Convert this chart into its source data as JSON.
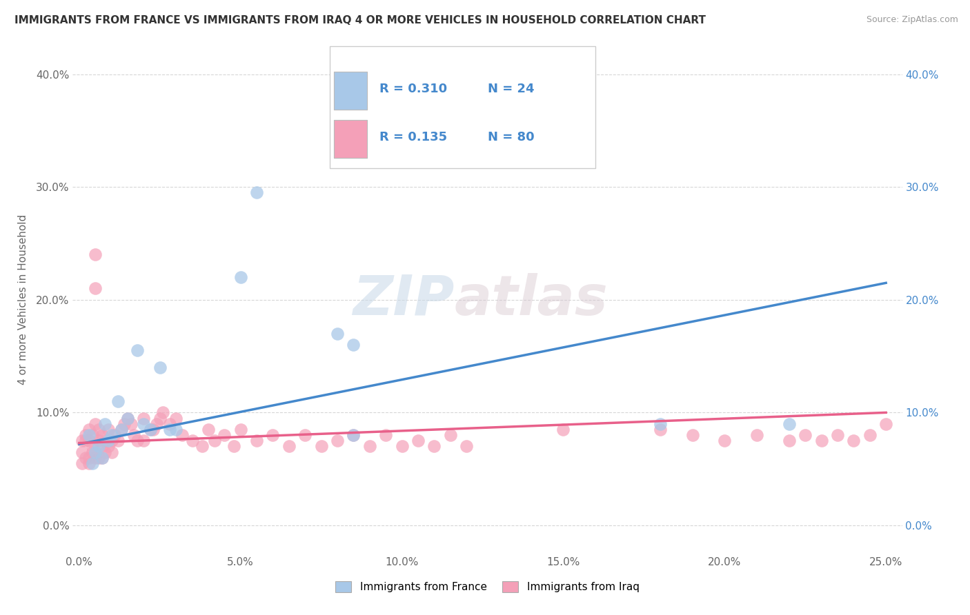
{
  "title": "IMMIGRANTS FROM FRANCE VS IMMIGRANTS FROM IRAQ 4 OR MORE VEHICLES IN HOUSEHOLD CORRELATION CHART",
  "source": "Source: ZipAtlas.com",
  "ylabel": "4 or more Vehicles in Household",
  "x_tick_vals": [
    0.0,
    0.05,
    0.1,
    0.15,
    0.2,
    0.25
  ],
  "y_tick_vals": [
    0.0,
    0.1,
    0.2,
    0.3,
    0.4
  ],
  "xlim": [
    -0.002,
    0.255
  ],
  "ylim": [
    -0.025,
    0.425
  ],
  "france_R": 0.31,
  "france_N": 24,
  "iraq_R": 0.135,
  "iraq_N": 80,
  "france_color": "#a8c8e8",
  "iraq_color": "#f4a0b8",
  "france_line_color": "#4488cc",
  "iraq_line_color": "#e8608a",
  "right_ytick_color": "#4488cc",
  "legend_label_france": "Immigrants from France",
  "legend_label_iraq": "Immigrants from Iraq",
  "france_scatter_x": [
    0.003,
    0.004,
    0.005,
    0.006,
    0.007,
    0.008,
    0.009,
    0.01,
    0.012,
    0.013,
    0.015,
    0.018,
    0.02,
    0.022,
    0.025,
    0.028,
    0.03,
    0.05,
    0.055,
    0.08,
    0.085,
    0.085,
    0.18,
    0.22
  ],
  "france_scatter_y": [
    0.08,
    0.055,
    0.065,
    0.07,
    0.06,
    0.09,
    0.075,
    0.08,
    0.11,
    0.085,
    0.095,
    0.155,
    0.09,
    0.085,
    0.14,
    0.085,
    0.085,
    0.22,
    0.295,
    0.17,
    0.16,
    0.08,
    0.09,
    0.09
  ],
  "iraq_scatter_x": [
    0.001,
    0.001,
    0.001,
    0.002,
    0.002,
    0.002,
    0.003,
    0.003,
    0.003,
    0.003,
    0.004,
    0.004,
    0.004,
    0.005,
    0.005,
    0.005,
    0.005,
    0.006,
    0.006,
    0.006,
    0.007,
    0.007,
    0.007,
    0.008,
    0.008,
    0.009,
    0.009,
    0.01,
    0.01,
    0.011,
    0.012,
    0.013,
    0.014,
    0.015,
    0.016,
    0.017,
    0.018,
    0.02,
    0.02,
    0.022,
    0.023,
    0.024,
    0.025,
    0.026,
    0.028,
    0.03,
    0.032,
    0.035,
    0.038,
    0.04,
    0.042,
    0.045,
    0.048,
    0.05,
    0.055,
    0.06,
    0.065,
    0.07,
    0.075,
    0.08,
    0.085,
    0.09,
    0.095,
    0.1,
    0.105,
    0.11,
    0.115,
    0.12,
    0.15,
    0.18,
    0.19,
    0.2,
    0.21,
    0.22,
    0.225,
    0.23,
    0.235,
    0.24,
    0.245,
    0.25
  ],
  "iraq_scatter_y": [
    0.065,
    0.075,
    0.055,
    0.06,
    0.075,
    0.08,
    0.055,
    0.075,
    0.085,
    0.06,
    0.07,
    0.08,
    0.065,
    0.24,
    0.21,
    0.06,
    0.09,
    0.075,
    0.085,
    0.06,
    0.07,
    0.08,
    0.06,
    0.075,
    0.065,
    0.07,
    0.085,
    0.075,
    0.065,
    0.08,
    0.075,
    0.085,
    0.09,
    0.095,
    0.09,
    0.08,
    0.075,
    0.095,
    0.075,
    0.085,
    0.085,
    0.09,
    0.095,
    0.1,
    0.09,
    0.095,
    0.08,
    0.075,
    0.07,
    0.085,
    0.075,
    0.08,
    0.07,
    0.085,
    0.075,
    0.08,
    0.07,
    0.08,
    0.07,
    0.075,
    0.08,
    0.07,
    0.08,
    0.07,
    0.075,
    0.07,
    0.08,
    0.07,
    0.085,
    0.085,
    0.08,
    0.075,
    0.08,
    0.075,
    0.08,
    0.075,
    0.08,
    0.075,
    0.08,
    0.09
  ],
  "watermark_zip": "ZIP",
  "watermark_atlas": "atlas",
  "france_line_x": [
    0.0,
    0.25
  ],
  "france_line_y": [
    0.072,
    0.215
  ],
  "iraq_line_x": [
    0.0,
    0.25
  ],
  "iraq_line_y": [
    0.073,
    0.1
  ]
}
